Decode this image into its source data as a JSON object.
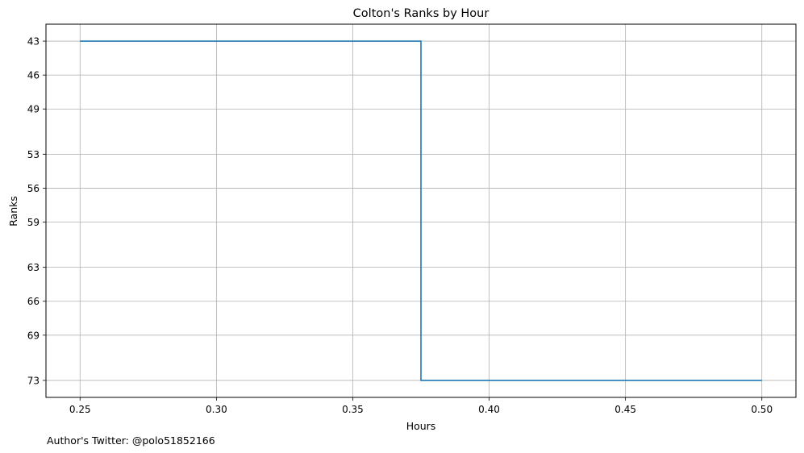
{
  "footer_text": "Author's Twitter: @polo51852166",
  "chart_data": {
    "type": "line",
    "step": "post",
    "title": "Colton's Ranks by Hour",
    "xlabel": "Hours",
    "ylabel": "Ranks",
    "x": [
      0.25,
      0.375,
      0.5
    ],
    "y": [
      43,
      73,
      73
    ],
    "xlim": [
      0.2375,
      0.5125
    ],
    "ylim": [
      74.5,
      41.5
    ],
    "y_inverted": true,
    "xticks": [
      0.25,
      0.3,
      0.35,
      0.4,
      0.45,
      0.5
    ],
    "xtick_labels": [
      "0.25",
      "0.30",
      "0.35",
      "0.40",
      "0.45",
      "0.50"
    ],
    "yticks": [
      43,
      46,
      49,
      53,
      56,
      59,
      63,
      66,
      69,
      73
    ],
    "ytick_labels": [
      "43",
      "46",
      "49",
      "53",
      "56",
      "59",
      "63",
      "66",
      "69",
      "73"
    ],
    "grid": true,
    "line_color": "#1f77b4",
    "grid_color": "#b0b0b0"
  }
}
